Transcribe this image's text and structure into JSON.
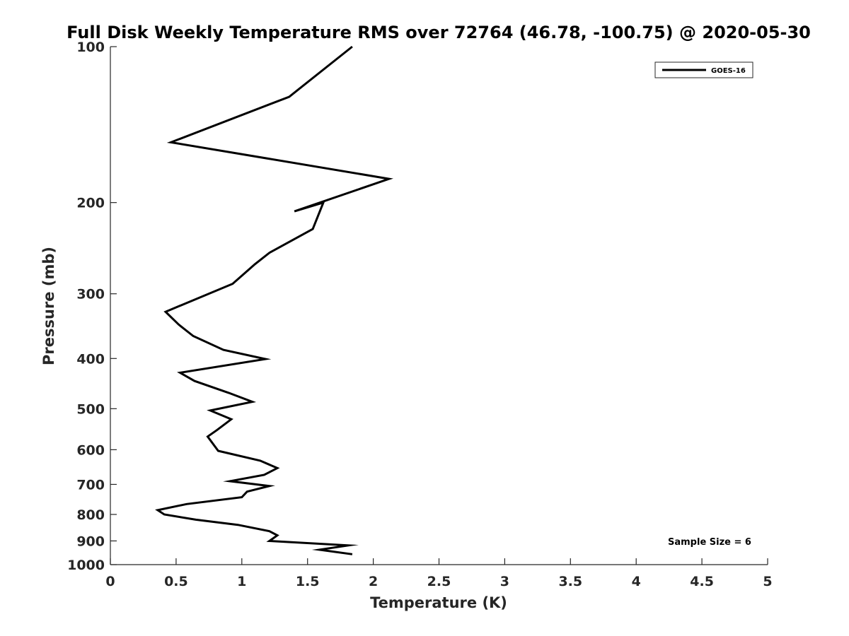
{
  "chart_data": {
    "type": "line",
    "title": "Full Disk Weekly Temperature RMS over 72764 (46.78, -100.75) @ 2020-05-30",
    "xlabel": "Temperature (K)",
    "ylabel": "Pressure (mb)",
    "xlim": [
      0,
      5
    ],
    "ylim": [
      100,
      1000
    ],
    "yscale": "log",
    "y_reversed": true,
    "x_ticks": [
      0,
      0.5,
      1,
      1.5,
      2,
      2.5,
      3,
      3.5,
      4,
      4.5,
      5
    ],
    "x_tick_labels": [
      "0",
      "0.5",
      "1",
      "1.5",
      "2",
      "2.5",
      "3",
      "3.5",
      "4",
      "4.5",
      "5"
    ],
    "y_ticks": [
      100,
      200,
      300,
      400,
      500,
      600,
      700,
      800,
      900,
      1000
    ],
    "y_tick_labels": [
      "100",
      "200",
      "300",
      "400",
      "500",
      "600",
      "700",
      "800",
      "900",
      "1000"
    ],
    "grid": false,
    "legend_position": "top-right",
    "annotation": "Sample Size = 6",
    "series": [
      {
        "name": "GOES-16",
        "color": "#000000",
        "points": [
          [
            1.84,
            100
          ],
          [
            1.36,
            125
          ],
          [
            0.46,
            153
          ],
          [
            2.12,
            180
          ],
          [
            1.4,
            208
          ],
          [
            1.62,
            200
          ],
          [
            1.54,
            225
          ],
          [
            1.21,
            250
          ],
          [
            1.1,
            263
          ],
          [
            0.93,
            287
          ],
          [
            0.42,
            325
          ],
          [
            0.52,
            344
          ],
          [
            0.63,
            362
          ],
          [
            0.86,
            385
          ],
          [
            1.18,
            401
          ],
          [
            0.53,
            426
          ],
          [
            0.64,
            442
          ],
          [
            0.9,
            466
          ],
          [
            1.08,
            485
          ],
          [
            0.76,
            504
          ],
          [
            0.92,
            524
          ],
          [
            0.81,
            550
          ],
          [
            0.74,
            566
          ],
          [
            0.82,
            603
          ],
          [
            1.14,
            630
          ],
          [
            1.27,
            651
          ],
          [
            1.17,
            671
          ],
          [
            0.91,
            690
          ],
          [
            1.21,
            705
          ],
          [
            1.04,
            723
          ],
          [
            1.0,
            741
          ],
          [
            0.58,
            764
          ],
          [
            0.36,
            785
          ],
          [
            0.41,
            800
          ],
          [
            0.65,
            819
          ],
          [
            0.97,
            838
          ],
          [
            1.21,
            862
          ],
          [
            1.27,
            878
          ],
          [
            1.21,
            900
          ],
          [
            1.81,
            918
          ],
          [
            1.59,
            936
          ],
          [
            1.84,
            955
          ]
        ]
      }
    ]
  }
}
